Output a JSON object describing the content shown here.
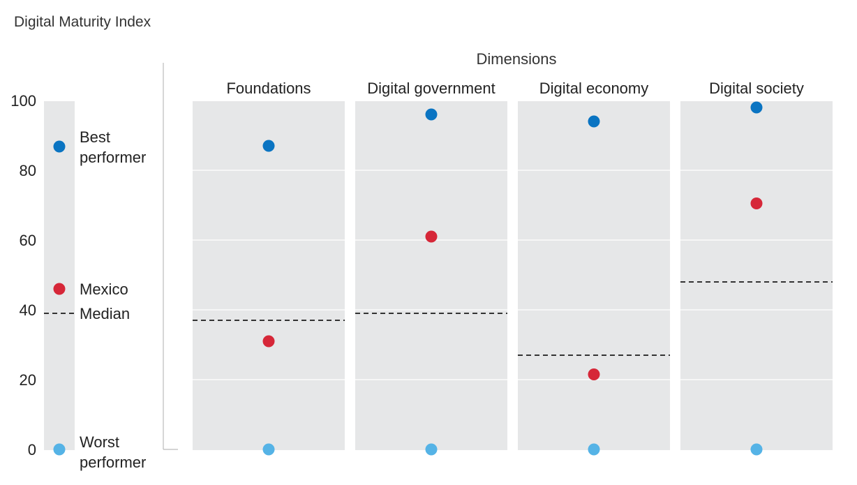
{
  "chart_data": {
    "type": "scatter",
    "title": "Digital Maturity Index",
    "group_title": "Dimensions",
    "ylim": [
      0,
      100
    ],
    "yticks": [
      0,
      20,
      40,
      60,
      80,
      100
    ],
    "categories": [
      "Foundations",
      "Digital government",
      "Digital economy",
      "Digital society"
    ],
    "series": [
      {
        "name": "Best performer",
        "values": [
          87,
          96,
          94,
          98
        ],
        "color": "#0a74c2"
      },
      {
        "name": "Mexico",
        "values": [
          31,
          61,
          21.5,
          70.5
        ],
        "color": "#d62738"
      },
      {
        "name": "Worst performer",
        "values": [
          0,
          0,
          0,
          0
        ],
        "color": "#55b3e6"
      }
    ],
    "median": {
      "name": "Median",
      "values": [
        37,
        39,
        27,
        48
      ]
    },
    "legend": {
      "best": [
        "Best",
        "performer"
      ],
      "mexico": "Mexico",
      "median": "Median",
      "worst": [
        "Worst",
        "performer"
      ]
    },
    "grid": true
  }
}
